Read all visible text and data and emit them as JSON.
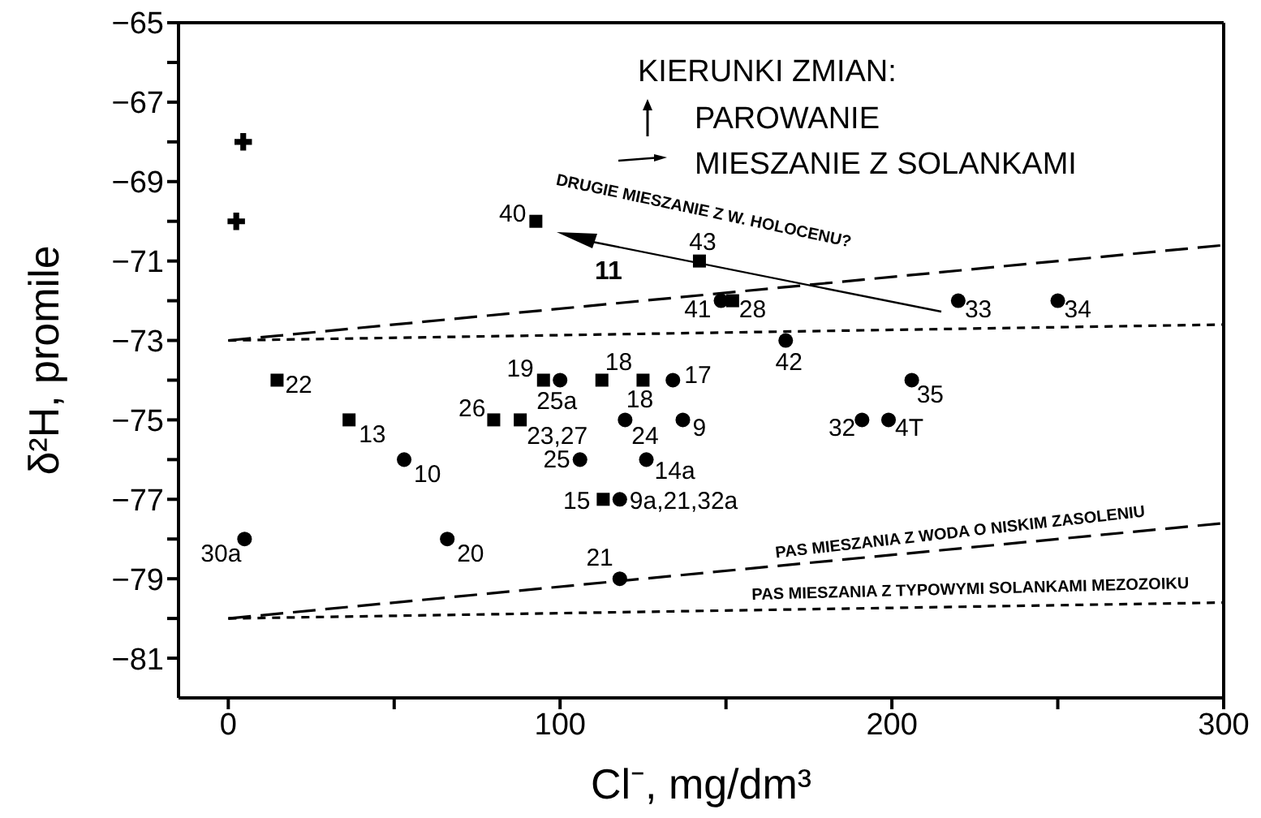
{
  "chart_data": {
    "type": "scatter",
    "xlabel": "Cl⁻, mg/dm³",
    "ylabel": "δ²H, promile",
    "xlim": [
      -15,
      300
    ],
    "ylim": [
      -82,
      -65
    ],
    "xticks": [
      0,
      {
        "value": 50,
        "label": null
      },
      100,
      {
        "value": 150,
        "label": null
      },
      200,
      {
        "value": 250,
        "label": null
      },
      300
    ],
    "yticks": [
      -81,
      {
        "value": -80,
        "label": null
      },
      -79,
      {
        "value": -78,
        "label": null
      },
      -77,
      {
        "value": -76,
        "label": null
      },
      -75,
      {
        "value": -74,
        "label": null
      },
      -73,
      {
        "value": -72,
        "label": null
      },
      -71,
      {
        "value": -70,
        "label": null
      },
      -69,
      {
        "value": -68,
        "label": null
      },
      -67,
      {
        "value": -66,
        "label": null
      },
      -65
    ],
    "grid": false,
    "legend": false,
    "series": [
      {
        "marker": "square",
        "color": "#000000",
        "x": [
          14.7,
          36.4,
          80,
          88,
          95,
          112.6,
          125,
          113,
          152
        ],
        "values": [
          -74,
          -75,
          -75,
          -75,
          -74,
          -74,
          -74,
          -77,
          -72
        ]
      },
      {
        "marker": "circle",
        "color": "#000000",
        "x": [
          4.9,
          53,
          66,
          100,
          134,
          119.6,
          137,
          106,
          126,
          118,
          118,
          168,
          206,
          191,
          199,
          220,
          250,
          148.5
        ],
        "values": [
          -78,
          -76,
          -78,
          -74,
          -74,
          -75,
          -75,
          -76,
          -76,
          -77,
          -79,
          -73,
          -74,
          -75,
          -75,
          -72,
          -72,
          -72
        ]
      },
      {
        "marker": "square",
        "color": "#000000",
        "x": [
          92.7,
          142
        ],
        "values": [
          -70,
          -71
        ]
      },
      {
        "marker": "cross",
        "color": "#000000",
        "x": [
          4.5,
          2.4
        ],
        "values": [
          -68,
          -70
        ]
      },
      {
        "type": "line",
        "marker": "none",
        "line_style": "dashed",
        "color": "#000000",
        "x": [
          0,
          300
        ],
        "values": [
          -73,
          -70.6
        ]
      },
      {
        "type": "line",
        "marker": "none",
        "line_style": "dotted",
        "color": "#000000",
        "x": [
          0,
          300
        ],
        "values": [
          -73,
          -72.6
        ]
      },
      {
        "type": "line",
        "marker": "none",
        "line_style": "dashed",
        "color": "#000000",
        "x": [
          0,
          300
        ],
        "values": [
          -80,
          -77.6
        ]
      },
      {
        "type": "line",
        "marker": "none",
        "line_style": "dotted",
        "color": "#000000",
        "x": [
          0,
          300
        ],
        "values": [
          -80,
          -79.6
        ]
      }
    ],
    "annotations": [
      {
        "text": "22",
        "x": 14.7,
        "y": -74
      },
      {
        "text": "13",
        "x": 36.4,
        "y": -75
      },
      {
        "text": "10",
        "x": 53,
        "y": -76
      },
      {
        "text": "30a",
        "x": 4.9,
        "y": -78
      },
      {
        "text": "20",
        "x": 66,
        "y": -78
      },
      {
        "text": "26",
        "x": 80,
        "y": -75
      },
      {
        "text": "23,27",
        "x": 88,
        "y": -75
      },
      {
        "text": "19",
        "x": 95,
        "y": -74
      },
      {
        "text": "25a",
        "x": 100,
        "y": -74
      },
      {
        "text": "18",
        "x": 112.6,
        "y": -74
      },
      {
        "text": "18",
        "x": 125,
        "y": -74
      },
      {
        "text": "17",
        "x": 134,
        "y": -74
      },
      {
        "text": "24",
        "x": 119.6,
        "y": -75
      },
      {
        "text": "9",
        "x": 137,
        "y": -75
      },
      {
        "text": "25",
        "x": 106,
        "y": -76
      },
      {
        "text": "14a",
        "x": 126,
        "y": -76
      },
      {
        "text": "15",
        "x": 113,
        "y": -77
      },
      {
        "text": "9a,21,32a",
        "x": 118,
        "y": -77
      },
      {
        "text": "21",
        "x": 118,
        "y": -79
      },
      {
        "text": "42",
        "x": 168,
        "y": -73
      },
      {
        "text": "35",
        "x": 206,
        "y": -74
      },
      {
        "text": "32",
        "x": 191,
        "y": -75
      },
      {
        "text": "4T",
        "x": 199,
        "y": -75
      },
      {
        "text": "33",
        "x": 220,
        "y": -72
      },
      {
        "text": "34",
        "x": 250,
        "y": -72
      },
      {
        "text": "41",
        "x": 148.5,
        "y": -72
      },
      {
        "text": "28",
        "x": 152,
        "y": -72
      },
      {
        "text": "40",
        "x": 92.7,
        "y": -70
      },
      {
        "text": "43",
        "x": 142,
        "y": -71
      },
      "11",
      "KIERUNKI ZMIAN:",
      "PAROWANIE",
      "MIESZANIE Z SOLANKAMI",
      "DRUGIE MIESZANIE Z W. HOLOCENU?",
      "PAS MIESZANIA Z WODA O NISKIM ZASOLENIU",
      "PAS MIESZANIA Z TYPOWYMI SOLANKAMI MEZOZOIKU"
    ]
  }
}
